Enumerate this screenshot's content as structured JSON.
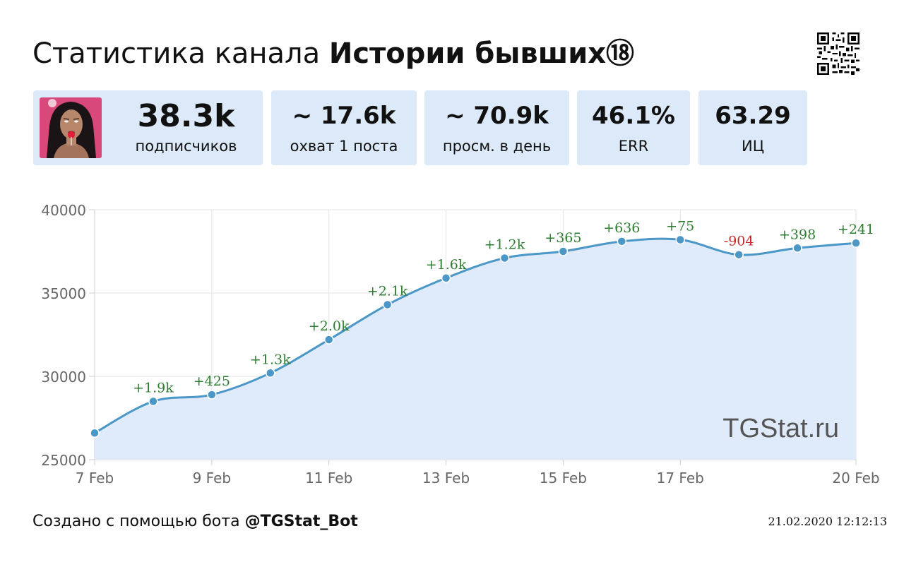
{
  "header": {
    "title_prefix": "Статистика канала",
    "channel_name": "Истории бывших",
    "badge": "⑱"
  },
  "stats": {
    "subscribers": {
      "value": "38.3k",
      "label": "подписчиков"
    },
    "reach": {
      "value": "~ 17.6k",
      "label": "охват 1 поста"
    },
    "views": {
      "value": "~ 70.9k",
      "label": "просм. в день"
    },
    "err": {
      "value": "46.1%",
      "label": "ERR"
    },
    "ic": {
      "value": "63.29",
      "label": "ИЦ"
    }
  },
  "colors": {
    "card_bg": "#dce9f8",
    "line": "#4a97c8",
    "area": "#dfeafa",
    "positive": "#2e7d32",
    "negative": "#c62828"
  },
  "chart_data": {
    "type": "area",
    "x": [
      "7 Feb",
      "8 Feb",
      "9 Feb",
      "10 Feb",
      "11 Feb",
      "12 Feb",
      "13 Feb",
      "14 Feb",
      "15 Feb",
      "16 Feb",
      "17 Feb",
      "18 Feb",
      "19 Feb",
      "20 Feb"
    ],
    "values": [
      26600,
      28500,
      28900,
      30200,
      32200,
      34300,
      35900,
      37100,
      37500,
      38100,
      38200,
      37300,
      37700,
      38000
    ],
    "deltas": [
      "",
      "+1.9k",
      "+425",
      "+1.3k",
      "+2.0k",
      "+2.1k",
      "+1.6k",
      "+1.2k",
      "+365",
      "+636",
      "+75",
      "-904",
      "+398",
      "+241"
    ],
    "x_tick_labels": [
      "7 Feb",
      "9 Feb",
      "11 Feb",
      "13 Feb",
      "15 Feb",
      "17 Feb",
      "20 Feb"
    ],
    "y_ticks": [
      25000,
      30000,
      35000,
      40000
    ],
    "ylim": [
      25000,
      40000
    ],
    "grid": true,
    "watermark": "TGStat.ru"
  },
  "footer": {
    "created_prefix": "Создано с помощью бота",
    "bot": "@TGStat_Bot",
    "timestamp": "21.02.2020 12:12:13"
  }
}
